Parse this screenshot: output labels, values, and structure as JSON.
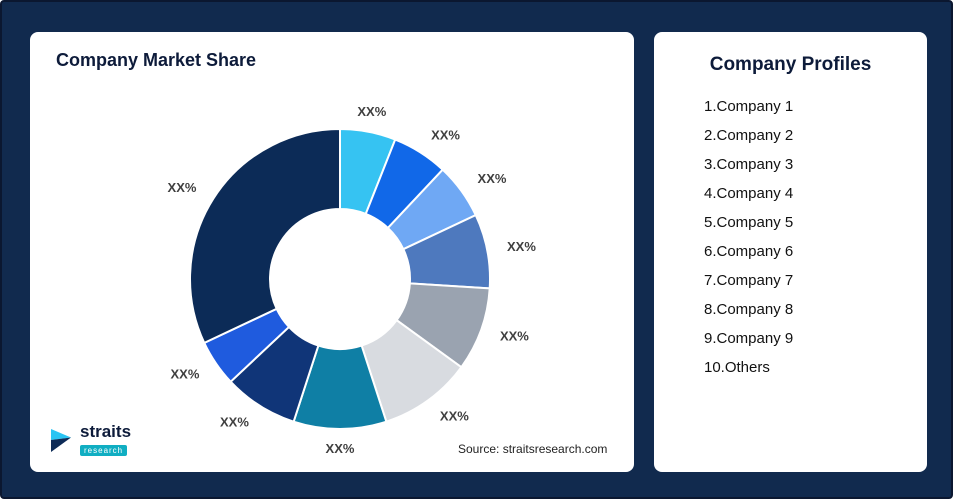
{
  "page": {
    "background": "#112A4E"
  },
  "left_card": {
    "title": "Company Market Share",
    "source": "Source: straitsresearch.com",
    "logo": {
      "name": "straits",
      "sub": "research"
    }
  },
  "right_card": {
    "title": "Company Profiles",
    "items": [
      "1.Company 1",
      "2.Company 2",
      "3.Company 3",
      "4.Company 4",
      "5.Company 5",
      "6.Company 6",
      "7.Company 7",
      "8.Company 8",
      "9.Company 9",
      "10.Others"
    ]
  },
  "chart_data": {
    "type": "pie",
    "subtype": "donut",
    "title": "Company Market Share",
    "legend_position": "none",
    "start_angle_deg": 0,
    "direction": "clockwise",
    "segments": [
      {
        "name": "Company 1",
        "label": "XX%",
        "value": 6,
        "color": "#36C3F2"
      },
      {
        "name": "Company 2",
        "label": "XX%",
        "value": 6,
        "color": "#1168E8"
      },
      {
        "name": "Company 3",
        "label": "XX%",
        "value": 6,
        "color": "#6FA8F4"
      },
      {
        "name": "Company 4",
        "label": "XX%",
        "value": 8,
        "color": "#4E79BE"
      },
      {
        "name": "Company 5",
        "label": "XX%",
        "value": 9,
        "color": "#9AA3B0"
      },
      {
        "name": "Company 6",
        "label": "XX%",
        "value": 10,
        "color": "#D8DBE0"
      },
      {
        "name": "Company 7",
        "label": "XX%",
        "value": 10,
        "color": "#0F7FA5"
      },
      {
        "name": "Company 8",
        "label": "XX%",
        "value": 8,
        "color": "#103578"
      },
      {
        "name": "Company 9",
        "label": "XX%",
        "value": 5,
        "color": "#1F5BDE"
      },
      {
        "name": "Others",
        "label": "XX%",
        "value": 32,
        "color": "#0C2B57"
      }
    ]
  }
}
